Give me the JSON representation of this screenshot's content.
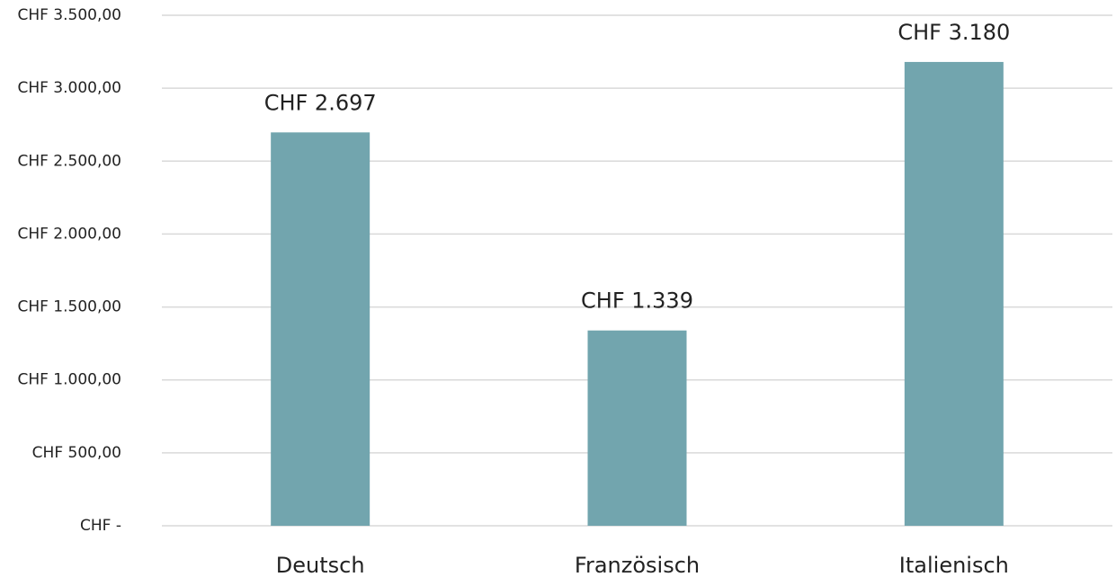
{
  "chart_data": {
    "type": "bar",
    "categories": [
      "Deutsch",
      "Französisch",
      "Italienisch"
    ],
    "values": [
      2697,
      1339,
      3180
    ],
    "value_labels": [
      "CHF 2.697",
      "CHF 1.339",
      "CHF 3.180"
    ],
    "color": "#72a5ae",
    "ylim": [
      0,
      3500
    ],
    "yticks": [
      {
        "value": 0,
        "label": "CHF -"
      },
      {
        "value": 500,
        "label": "CHF 500,00"
      },
      {
        "value": 1000,
        "label": "CHF 1.000,00"
      },
      {
        "value": 1500,
        "label": "CHF 1.500,00"
      },
      {
        "value": 2000,
        "label": "CHF 2.000,00"
      },
      {
        "value": 2500,
        "label": "CHF 2.500,00"
      },
      {
        "value": 3000,
        "label": "CHF 3.000,00"
      },
      {
        "value": 3500,
        "label": "CHF 3.500,00"
      }
    ],
    "grid": true
  }
}
